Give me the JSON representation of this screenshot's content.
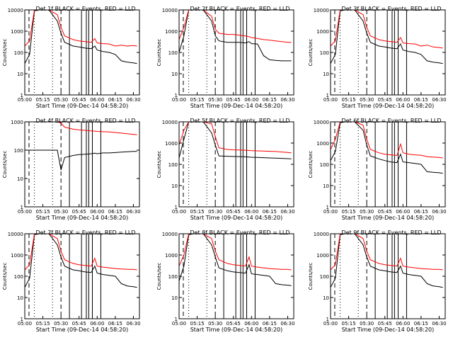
{
  "ylabel": "Counts/sec",
  "xlabel": "Start Time (09-Dec-14 04:58:20)",
  "x_ticks": [
    "05:00",
    "05:15",
    "05:30",
    "05:45",
    "06:00",
    "06:15",
    "06:30"
  ],
  "y_ticks": [
    "1",
    "10",
    "100",
    "1000",
    "10000"
  ],
  "colors": {
    "events": "#000000",
    "lld": "#ff0000",
    "axes": "#000000"
  },
  "chart_data": [
    {
      "type": "line",
      "title": "Det 1f BLACK = Events, RED = LLD",
      "y_scale": "log",
      "ylim": [
        1,
        10000
      ],
      "xlim": [
        "05:00",
        "06:35"
      ],
      "x": [
        "05:00",
        "05:04",
        "05:08",
        "05:12",
        "05:20",
        "05:27",
        "05:30",
        "05:33",
        "05:40",
        "05:45",
        "05:50",
        "05:55",
        "05:58",
        "06:00",
        "06:05",
        "06:10",
        "06:15",
        "06:20",
        "06:25",
        "06:30",
        "06:33"
      ],
      "series": [
        {
          "key": "events",
          "values": [
            30,
            80,
            9000,
            10000,
            10000,
            3000,
            800,
            300,
            200,
            180,
            160,
            150,
            200,
            130,
            110,
            100,
            80,
            40,
            35,
            32,
            30
          ]
        },
        {
          "key": "lld",
          "values": [
            200,
            350,
            10000,
            10000,
            10000,
            6000,
            1500,
            600,
            400,
            350,
            320,
            300,
            450,
            280,
            260,
            250,
            200,
            220,
            200,
            210,
            200
          ]
        }
      ]
    },
    {
      "type": "line",
      "title": "Det 2f BLACK = Events, RED = LLD",
      "y_scale": "log",
      "ylim": [
        1,
        10000
      ],
      "xlim": [
        "05:00",
        "06:35"
      ],
      "x": [
        "05:00",
        "05:04",
        "05:08",
        "05:12",
        "05:20",
        "05:27",
        "05:30",
        "05:33",
        "05:40",
        "05:45",
        "05:50",
        "05:55",
        "05:58",
        "06:00",
        "06:05",
        "06:10",
        "06:15",
        "06:20",
        "06:25",
        "06:30",
        "06:33"
      ],
      "series": [
        {
          "key": "events",
          "values": [
            100,
            600,
            10000,
            10000,
            10000,
            3000,
            600,
            350,
            300,
            300,
            300,
            280,
            320,
            260,
            250,
            70,
            45,
            42,
            40,
            40,
            40
          ]
        },
        {
          "key": "lld",
          "values": [
            400,
            1500,
            10000,
            10000,
            10000,
            5000,
            1200,
            800,
            700,
            700,
            650,
            600,
            550,
            500,
            450,
            400,
            380,
            350,
            320,
            300,
            300
          ]
        }
      ]
    },
    {
      "type": "line",
      "title": "Det 3f BLACK = Events, RED = LLD",
      "y_scale": "log",
      "ylim": [
        1,
        10000
      ],
      "xlim": [
        "05:00",
        "06:35"
      ],
      "x": [
        "05:00",
        "05:04",
        "05:08",
        "05:12",
        "05:20",
        "05:27",
        "05:30",
        "05:33",
        "05:40",
        "05:45",
        "05:50",
        "05:55",
        "05:58",
        "06:00",
        "06:05",
        "06:10",
        "06:15",
        "06:20",
        "06:25",
        "06:30",
        "06:33"
      ],
      "series": [
        {
          "key": "events",
          "values": [
            30,
            80,
            9000,
            10000,
            10000,
            3000,
            800,
            300,
            200,
            180,
            160,
            150,
            250,
            130,
            110,
            100,
            80,
            40,
            35,
            32,
            30
          ]
        },
        {
          "key": "lld",
          "values": [
            200,
            350,
            10000,
            10000,
            10000,
            6000,
            1500,
            600,
            400,
            350,
            320,
            300,
            500,
            280,
            260,
            250,
            200,
            220,
            180,
            170,
            160
          ]
        }
      ]
    },
    {
      "type": "line",
      "title": "Det 4f BLACK = Events, RED = LLD",
      "y_scale": "log",
      "ylim": [
        1,
        1000
      ],
      "xlim": [
        "05:00",
        "06:35"
      ],
      "x": [
        "05:00",
        "05:04",
        "05:08",
        "05:12",
        "05:20",
        "05:27",
        "05:30",
        "05:33",
        "05:40",
        "05:45",
        "05:50",
        "05:55",
        "05:58",
        "06:00",
        "06:05",
        "06:10",
        "06:15",
        "06:20",
        "06:25",
        "06:30",
        "06:33"
      ],
      "series": [
        {
          "key": "events",
          "values": [
            100,
            100,
            100,
            100,
            100,
            100,
            20,
            55,
            65,
            70,
            72,
            75,
            78,
            75,
            80,
            80,
            82,
            85,
            88,
            90,
            90
          ]
        },
        {
          "key": "lld",
          "values": [
            1000,
            1000,
            1000,
            1000,
            1000,
            1000,
            900,
            650,
            550,
            520,
            500,
            480,
            470,
            460,
            450,
            440,
            420,
            400,
            380,
            360,
            350
          ]
        }
      ]
    },
    {
      "type": "line",
      "title": "Det 5f BLACK = Events, RED = LLD",
      "y_scale": "log",
      "ylim": [
        1,
        10000
      ],
      "xlim": [
        "05:00",
        "06:35"
      ],
      "x": [
        "05:00",
        "05:04",
        "05:08",
        "05:12",
        "05:20",
        "05:27",
        "05:30",
        "05:33",
        "05:40",
        "05:45",
        "05:50",
        "05:55",
        "05:58",
        "06:00",
        "06:05",
        "06:10",
        "06:15",
        "06:20",
        "06:25",
        "06:30",
        "06:33"
      ],
      "series": [
        {
          "key": "events",
          "values": [
            200,
            1500,
            10000,
            10000,
            10000,
            3000,
            800,
            250,
            240,
            235,
            230,
            225,
            220,
            215,
            210,
            205,
            200,
            195,
            190,
            185,
            180
          ]
        },
        {
          "key": "lld",
          "values": [
            800,
            4000,
            10000,
            10000,
            10000,
            8000,
            2000,
            600,
            500,
            480,
            470,
            460,
            450,
            440,
            430,
            420,
            410,
            400,
            380,
            360,
            350
          ]
        }
      ]
    },
    {
      "type": "line",
      "title": "Det 6f BLACK = Events, RED = LLD",
      "y_scale": "log",
      "ylim": [
        1,
        10000
      ],
      "xlim": [
        "05:00",
        "06:35"
      ],
      "x": [
        "05:00",
        "05:04",
        "05:08",
        "05:12",
        "05:20",
        "05:27",
        "05:30",
        "05:33",
        "05:40",
        "05:45",
        "05:50",
        "05:55",
        "05:58",
        "06:00",
        "06:05",
        "06:10",
        "06:15",
        "06:20",
        "06:25",
        "06:30",
        "06:33"
      ],
      "series": [
        {
          "key": "events",
          "values": [
            150,
            400,
            9000,
            10000,
            10000,
            4000,
            800,
            250,
            180,
            150,
            130,
            120,
            300,
            130,
            120,
            110,
            100,
            45,
            42,
            40,
            38
          ]
        },
        {
          "key": "lld",
          "values": [
            500,
            1500,
            10000,
            10000,
            10000,
            7000,
            1500,
            500,
            350,
            300,
            280,
            260,
            900,
            350,
            300,
            280,
            270,
            230,
            220,
            210,
            200
          ]
        }
      ]
    },
    {
      "type": "line",
      "title": "Det 7f BLACK = Events, RED = LLD",
      "y_scale": "log",
      "ylim": [
        1,
        10000
      ],
      "xlim": [
        "05:00",
        "06:35"
      ],
      "x": [
        "05:00",
        "05:04",
        "05:08",
        "05:12",
        "05:20",
        "05:27",
        "05:30",
        "05:33",
        "05:40",
        "05:45",
        "05:50",
        "05:55",
        "05:58",
        "06:00",
        "06:05",
        "06:10",
        "06:15",
        "06:20",
        "06:25",
        "06:30",
        "06:33"
      ],
      "series": [
        {
          "key": "events",
          "values": [
            30,
            80,
            9000,
            10000,
            10000,
            3000,
            800,
            300,
            200,
            180,
            160,
            150,
            300,
            140,
            120,
            110,
            100,
            45,
            35,
            32,
            30
          ]
        },
        {
          "key": "lld",
          "values": [
            200,
            350,
            10000,
            10000,
            10000,
            6000,
            1500,
            600,
            400,
            350,
            320,
            300,
            700,
            300,
            270,
            250,
            230,
            220,
            210,
            210,
            200
          ]
        }
      ]
    },
    {
      "type": "line",
      "title": "Det 8f BLACK = Events, RED = LLD",
      "y_scale": "log",
      "ylim": [
        1,
        10000
      ],
      "xlim": [
        "05:00",
        "06:35"
      ],
      "x": [
        "05:00",
        "05:04",
        "05:08",
        "05:12",
        "05:20",
        "05:27",
        "05:30",
        "05:33",
        "05:40",
        "05:45",
        "05:50",
        "05:55",
        "05:58",
        "06:00",
        "06:05",
        "06:10",
        "06:15",
        "06:20",
        "06:25",
        "06:30",
        "06:33"
      ],
      "series": [
        {
          "key": "events",
          "values": [
            60,
            300,
            9000,
            10000,
            10000,
            3000,
            800,
            250,
            180,
            160,
            150,
            140,
            350,
            130,
            120,
            110,
            100,
            45,
            40,
            38,
            36
          ]
        },
        {
          "key": "lld",
          "values": [
            300,
            1000,
            10000,
            10000,
            10000,
            6000,
            1500,
            600,
            400,
            350,
            320,
            300,
            800,
            300,
            270,
            250,
            230,
            220,
            210,
            210,
            200
          ]
        }
      ]
    },
    {
      "type": "line",
      "title": "Det 9f BLACK = Events, RED = LLD",
      "y_scale": "log",
      "ylim": [
        1,
        10000
      ],
      "xlim": [
        "05:00",
        "06:35"
      ],
      "x": [
        "05:00",
        "05:04",
        "05:08",
        "05:12",
        "05:20",
        "05:27",
        "05:30",
        "05:33",
        "05:40",
        "05:45",
        "05:50",
        "05:55",
        "05:58",
        "06:00",
        "06:05",
        "06:10",
        "06:15",
        "06:20",
        "06:25",
        "06:30",
        "06:33"
      ],
      "series": [
        {
          "key": "events",
          "values": [
            30,
            80,
            9000,
            10000,
            10000,
            3000,
            800,
            300,
            200,
            180,
            160,
            150,
            300,
            140,
            120,
            110,
            100,
            45,
            35,
            32,
            30
          ]
        },
        {
          "key": "lld",
          "values": [
            200,
            350,
            10000,
            10000,
            10000,
            6000,
            1500,
            600,
            400,
            350,
            320,
            300,
            700,
            300,
            270,
            250,
            230,
            220,
            210,
            210,
            200
          ]
        }
      ]
    }
  ]
}
